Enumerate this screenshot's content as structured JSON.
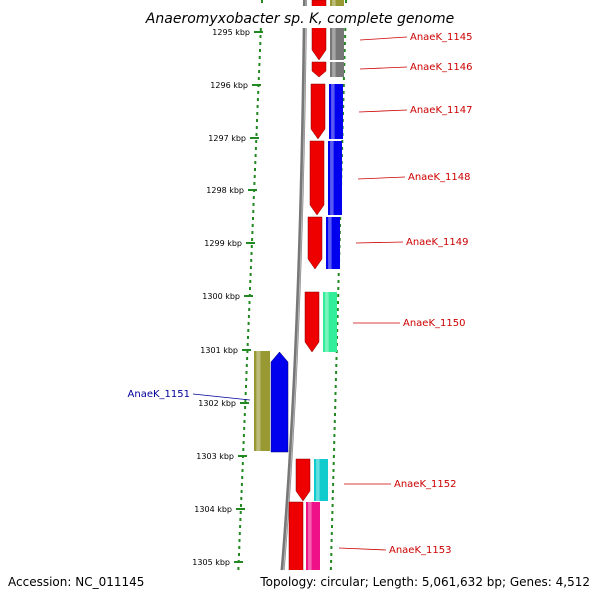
{
  "title": "Anaeromyxobacter sp. K, complete genome",
  "footer": {
    "accession": "Accession: NC_011145",
    "topology": "Topology: circular; Length: 5,061,632 bp; Genes: 4,512"
  },
  "ticks": [
    "1295 kbp",
    "1296 kbp",
    "1297 kbp",
    "1298 kbp",
    "1299 kbp",
    "1300 kbp",
    "1301 kbp",
    "1302 kbp",
    "1303 kbp",
    "1304 kbp",
    "1305 kbp"
  ],
  "genes": [
    {
      "label": "AnaeK_1145",
      "strand": "plus",
      "color": "#cc0000"
    },
    {
      "label": "AnaeK_1146",
      "strand": "plus",
      "color": "#cc0000"
    },
    {
      "label": "AnaeK_1147",
      "strand": "plus",
      "color": "#cc0000"
    },
    {
      "label": "AnaeK_1148",
      "strand": "plus",
      "color": "#cc0000"
    },
    {
      "label": "AnaeK_1149",
      "strand": "plus",
      "color": "#cc0000"
    },
    {
      "label": "AnaeK_1150",
      "strand": "plus",
      "color": "#cc0000"
    },
    {
      "label": "AnaeK_1151",
      "strand": "minus",
      "color": "#000099"
    },
    {
      "label": "AnaeK_1152",
      "strand": "plus",
      "color": "#cc0000"
    },
    {
      "label": "AnaeK_1153",
      "strand": "plus",
      "color": "#cc0000"
    }
  ],
  "colors": {
    "cds": "#ee0000",
    "cog_blue": "#0000ee",
    "cog_green": "#33ee99",
    "cog_cyan": "#11cccc",
    "cog_pink": "#ee1188",
    "cog_olive": "#999933",
    "cog_gray": "#777777",
    "backbone": "#888888",
    "gc_dots": "#228822"
  }
}
